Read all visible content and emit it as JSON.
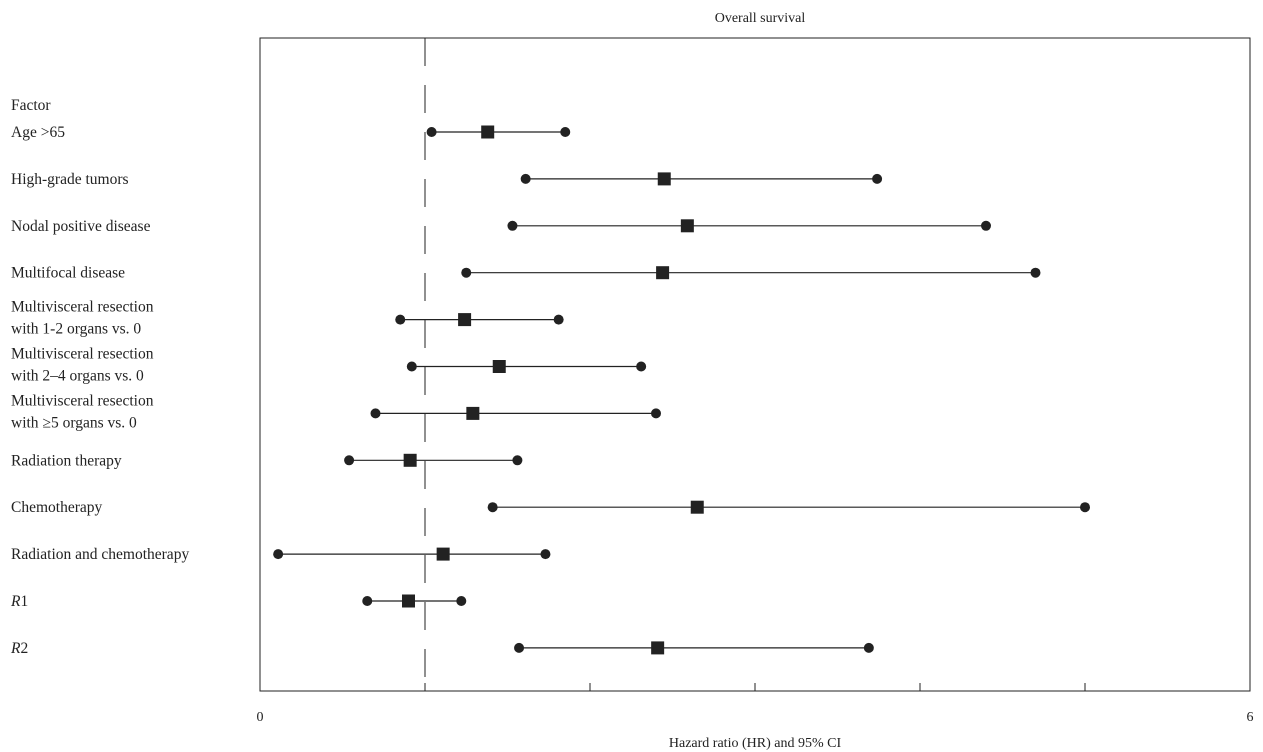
{
  "chart_data": {
    "type": "forest",
    "title": "Overall survival",
    "xlabel": "Hazard ratio (HR) and 95% CI",
    "xlim": [
      0,
      6
    ],
    "x_ticks": [
      0,
      1,
      2,
      3,
      4,
      5,
      6
    ],
    "x_tick_labels": [
      "0",
      "",
      "",
      "",
      "",
      "",
      "6"
    ],
    "reference_line": 1,
    "header_label": "Factor",
    "rows": [
      {
        "label_lines": [
          "Age >65"
        ],
        "hr": 1.38,
        "lower": 1.04,
        "upper": 1.85
      },
      {
        "label_lines": [
          "High-grade tumors"
        ],
        "hr": 2.45,
        "lower": 1.61,
        "upper": 3.74
      },
      {
        "label_lines": [
          "Nodal positive disease"
        ],
        "hr": 2.59,
        "lower": 1.53,
        "upper": 4.4
      },
      {
        "label_lines": [
          "Multifocal disease"
        ],
        "hr": 2.44,
        "lower": 1.25,
        "upper": 4.7
      },
      {
        "label_lines": [
          "Multivisceral resection",
          "with 1-2 organs vs. 0"
        ],
        "hr": 1.24,
        "lower": 0.85,
        "upper": 1.81
      },
      {
        "label_lines": [
          "Multivisceral resection",
          "with 2–4 organs vs. 0"
        ],
        "hr": 1.45,
        "lower": 0.92,
        "upper": 2.31
      },
      {
        "label_lines": [
          "Multivisceral resection",
          "with ≥5 organs vs. 0"
        ],
        "hr": 1.29,
        "lower": 0.7,
        "upper": 2.4
      },
      {
        "label_lines": [
          "Radiation therapy"
        ],
        "hr": 0.91,
        "lower": 0.54,
        "upper": 1.56
      },
      {
        "label_lines": [
          "Chemotherapy"
        ],
        "hr": 2.65,
        "lower": 1.41,
        "upper": 5.0
      },
      {
        "label_lines": [
          "Radiation and chemotherapy"
        ],
        "hr": 1.11,
        "lower": 0.11,
        "upper": 1.73
      },
      {
        "label_lines": [
          "R1"
        ],
        "hr": 0.9,
        "lower": 0.65,
        "upper": 1.22,
        "italic_prefix": "R",
        "suffix": "1"
      },
      {
        "label_lines": [
          "R2"
        ],
        "hr": 2.41,
        "lower": 1.57,
        "upper": 3.69,
        "italic_prefix": "R",
        "suffix": "2"
      }
    ],
    "marker_color": "#222222",
    "grid": false
  }
}
